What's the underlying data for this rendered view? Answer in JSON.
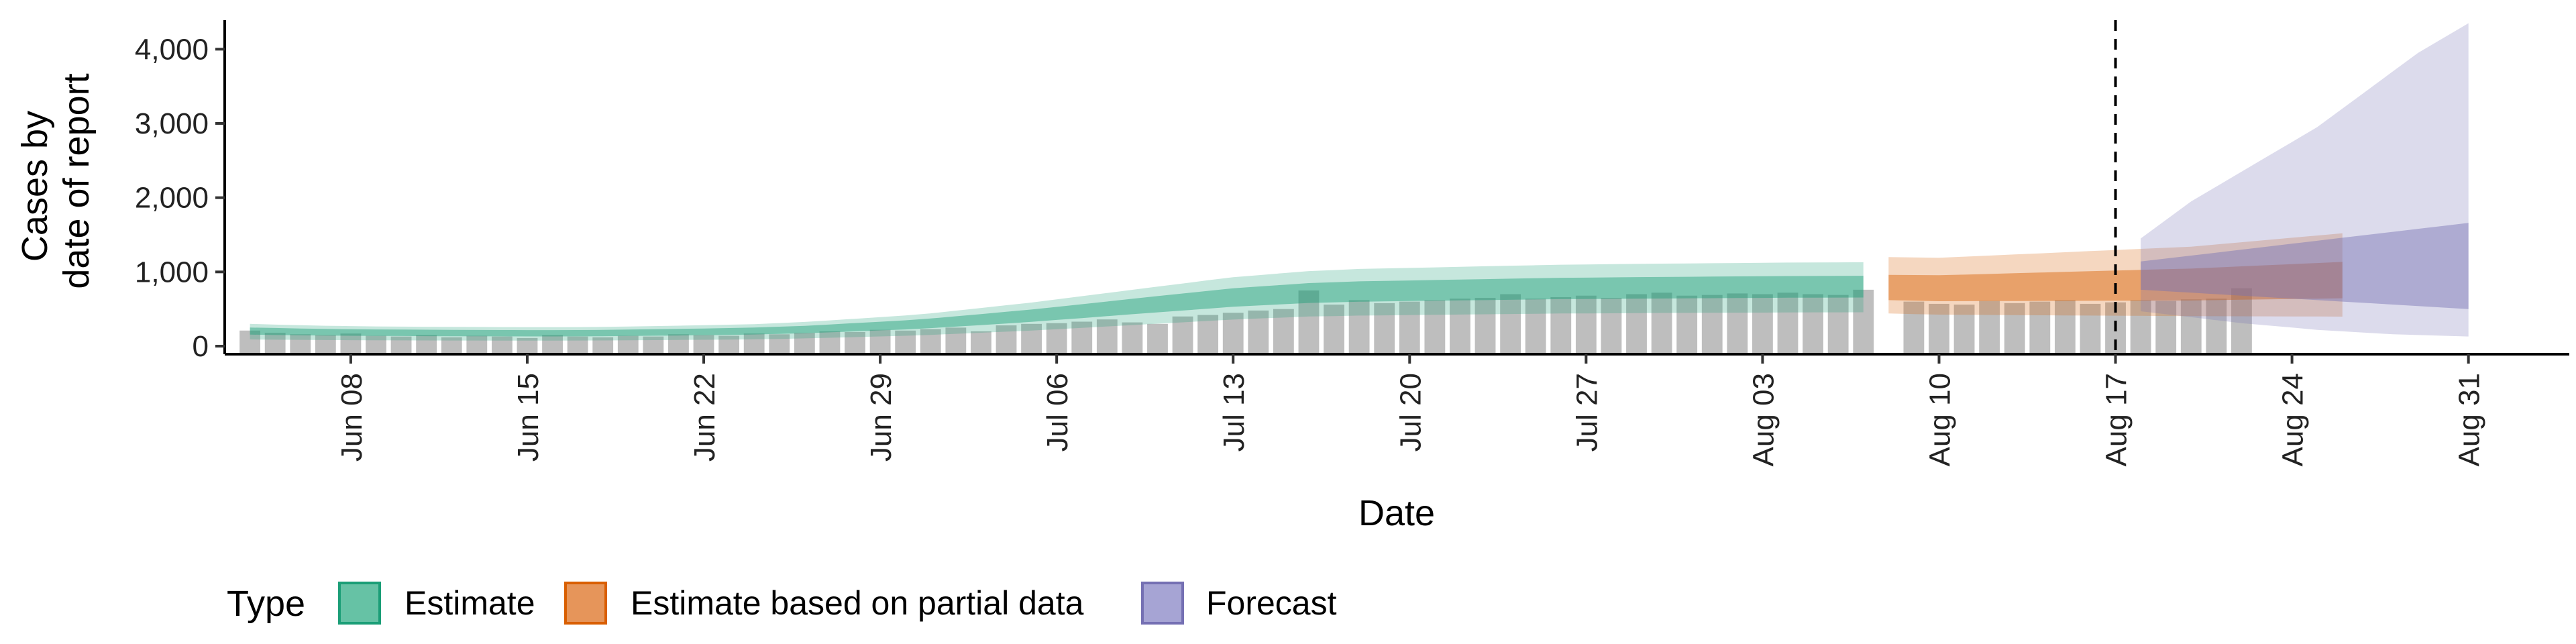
{
  "chart_data": {
    "type": "area",
    "title": "",
    "xlabel": "Date",
    "ylabel": [
      "Cases by",
      "date of report"
    ],
    "x_range": [
      "2020-06-03",
      "2020-09-04"
    ],
    "ylim": [
      0,
      4500
    ],
    "y_ticks": [
      0,
      1000,
      2000,
      3000,
      4000
    ],
    "y_tick_labels": [
      "0",
      "1,000",
      "2,000",
      "3,000",
      "4,000"
    ],
    "x_ticks": [
      {
        "date": "2020-06-08",
        "label": "Jun 08"
      },
      {
        "date": "2020-06-15",
        "label": "Jun 15"
      },
      {
        "date": "2020-06-22",
        "label": "Jun 22"
      },
      {
        "date": "2020-06-29",
        "label": "Jun 29"
      },
      {
        "date": "2020-07-06",
        "label": "Jul 06"
      },
      {
        "date": "2020-07-13",
        "label": "Jul 13"
      },
      {
        "date": "2020-07-20",
        "label": "Jul 20"
      },
      {
        "date": "2020-07-27",
        "label": "Jul 27"
      },
      {
        "date": "2020-08-03",
        "label": "Aug 03"
      },
      {
        "date": "2020-08-10",
        "label": "Aug 10"
      },
      {
        "date": "2020-08-17",
        "label": "Aug 17"
      },
      {
        "date": "2020-08-24",
        "label": "Aug 24"
      },
      {
        "date": "2020-08-31",
        "label": "Aug 31"
      }
    ],
    "vline_date": "2020-08-17",
    "grid": false,
    "legend": {
      "title": "Type",
      "position": "bottom-left",
      "entries": [
        {
          "label": "Estimate",
          "fill": "#66c2a5",
          "stroke": "#1b9e77"
        },
        {
          "label": "Estimate based on partial data",
          "fill": "#e6955a",
          "stroke": "#d95f02"
        },
        {
          "label": "Forecast",
          "fill": "#a6a4d4",
          "stroke": "#7570b3"
        }
      ]
    },
    "reported_cases": {
      "start": "2020-06-04",
      "color": "#b3b3b3",
      "values": [
        210,
        180,
        160,
        150,
        170,
        140,
        130,
        150,
        120,
        140,
        130,
        110,
        150,
        130,
        120,
        140,
        130,
        160,
        150,
        140,
        170,
        160,
        180,
        200,
        190,
        220,
        210,
        230,
        250,
        200,
        280,
        300,
        310,
        330,
        360,
        320,
        300,
        400,
        420,
        450,
        480,
        500,
        750,
        560,
        620,
        580,
        600,
        620,
        640,
        650,
        700,
        640,
        660,
        680,
        650,
        700,
        720,
        680,
        690,
        710,
        700,
        720,
        700,
        690,
        760,
        0,
        600,
        570,
        560,
        610,
        580,
        600,
        620,
        570,
        590,
        620,
        610,
        630,
        640,
        780
      ]
    },
    "series": [
      {
        "name": "Estimate",
        "start": "2020-06-04",
        "color": "#1b9e77",
        "median": [
          200,
          195,
          190,
          185,
          182,
          180,
          178,
          176,
          175,
          174,
          173,
          172,
          172,
          173,
          175,
          178,
          182,
          186,
          190,
          195,
          200,
          210,
          220,
          235,
          250,
          265,
          280,
          300,
          325,
          350,
          375,
          400,
          430,
          460,
          490,
          520,
          550,
          580,
          610,
          640,
          660,
          680,
          700,
          710,
          720,
          725,
          730,
          735,
          740,
          745,
          750,
          755,
          760,
          762,
          765,
          768,
          770,
          772,
          774,
          776,
          778,
          780,
          781,
          782,
          783
        ],
        "inner_lo": [
          155,
          150,
          147,
          143,
          140,
          138,
          136,
          135,
          134,
          133,
          132,
          131,
          131,
          132,
          134,
          137,
          140,
          144,
          148,
          152,
          157,
          165,
          174,
          186,
          199,
          212,
          225,
          243,
          263,
          284,
          305,
          327,
          353,
          378,
          404,
          430,
          455,
          480,
          505,
          530,
          548,
          565,
          582,
          590,
          598,
          603,
          607,
          612,
          616,
          620,
          624,
          629,
          633,
          635,
          637,
          640,
          642,
          644,
          646,
          648,
          650,
          652,
          653,
          654,
          655
        ],
        "inner_hi": [
          250,
          245,
          238,
          232,
          228,
          225,
          223,
          221,
          219,
          218,
          217,
          216,
          216,
          217,
          219,
          223,
          228,
          233,
          238,
          244,
          250,
          262,
          274,
          292,
          311,
          329,
          348,
          372,
          402,
          432,
          463,
          493,
          529,
          565,
          601,
          638,
          674,
          709,
          745,
          780,
          803,
          826,
          849,
          861,
          873,
          879,
          885,
          891,
          897,
          903,
          909,
          915,
          921,
          923,
          926,
          930,
          932,
          934,
          937,
          940,
          942,
          944,
          945,
          947,
          948
        ],
        "outer_lo": [
          90,
          87,
          85,
          82,
          80,
          79,
          78,
          77,
          76,
          76,
          75,
          75,
          75,
          76,
          77,
          79,
          81,
          84,
          86,
          89,
          92,
          98,
          105,
          113,
          122,
          131,
          140,
          152,
          166,
          181,
          195,
          210,
          229,
          247,
          266,
          284,
          303,
          321,
          340,
          358,
          372,
          385,
          399,
          405,
          412,
          415,
          419,
          422,
          426,
          429,
          433,
          436,
          440,
          441,
          443,
          445,
          447,
          448,
          450,
          451,
          452,
          454,
          455,
          455,
          456
        ],
        "outer_hi": [
          300,
          290,
          282,
          275,
          270,
          266,
          263,
          261,
          259,
          258,
          257,
          256,
          256,
          257,
          259,
          264,
          270,
          276,
          282,
          289,
          296,
          311,
          326,
          347,
          369,
          391,
          413,
          442,
          478,
          514,
          551,
          587,
          630,
          673,
          716,
          759,
          802,
          844,
          887,
          929,
          956,
          984,
          1011,
          1025,
          1040,
          1047,
          1054,
          1061,
          1069,
          1076,
          1083,
          1090,
          1097,
          1100,
          1104,
          1108,
          1111,
          1114,
          1117,
          1120,
          1123,
          1126,
          1127,
          1129,
          1130
        ]
      },
      {
        "name": "Estimate based on partial data",
        "start": "2020-08-08",
        "color": "#d95f02",
        "median": [
          790,
          785,
          780,
          785,
          790,
          795,
          800,
          805,
          810,
          815,
          820,
          825,
          830,
          840,
          850,
          860,
          870,
          880,
          890
        ],
        "inner_lo": [
          620,
          612,
          605,
          606,
          607,
          608,
          609,
          610,
          611,
          612,
          613,
          614,
          615,
          620,
          625,
          630,
          635,
          640,
          645
        ],
        "inner_hi": [
          960,
          958,
          956,
          963,
          972,
          982,
          991,
          1000,
          1009,
          1018,
          1027,
          1036,
          1045,
          1060,
          1075,
          1090,
          1105,
          1120,
          1135
        ],
        "outer_lo": [
          440,
          432,
          425,
          422,
          420,
          418,
          416,
          414,
          412,
          410,
          408,
          406,
          404,
          403,
          402,
          401,
          400,
          399,
          398
        ],
        "outer_hi": [
          1200,
          1195,
          1190,
          1205,
          1220,
          1235,
          1250,
          1265,
          1280,
          1295,
          1310,
          1325,
          1340,
          1370,
          1400,
          1430,
          1460,
          1490,
          1520
        ]
      },
      {
        "name": "Forecast",
        "start": "2020-08-18",
        "color": "#7570b3",
        "median": [
          950,
          960,
          970,
          980,
          990,
          1000,
          1010,
          1020,
          1030,
          1040,
          1050,
          1060,
          1070,
          1080
        ],
        "inner_lo": [
          760,
          740,
          720,
          700,
          680,
          660,
          640,
          620,
          600,
          580,
          560,
          540,
          520,
          500
        ],
        "inner_hi": [
          1140,
          1180,
          1220,
          1260,
          1300,
          1340,
          1380,
          1420,
          1460,
          1500,
          1540,
          1580,
          1620,
          1660
        ],
        "outer_lo": [
          470,
          430,
          390,
          350,
          310,
          280,
          250,
          220,
          200,
          180,
          160,
          150,
          140,
          130
        ],
        "outer_hi": [
          1450,
          1700,
          1950,
          2150,
          2350,
          2550,
          2750,
          2950,
          3200,
          3450,
          3700,
          3950,
          4150,
          4350
        ]
      }
    ]
  }
}
